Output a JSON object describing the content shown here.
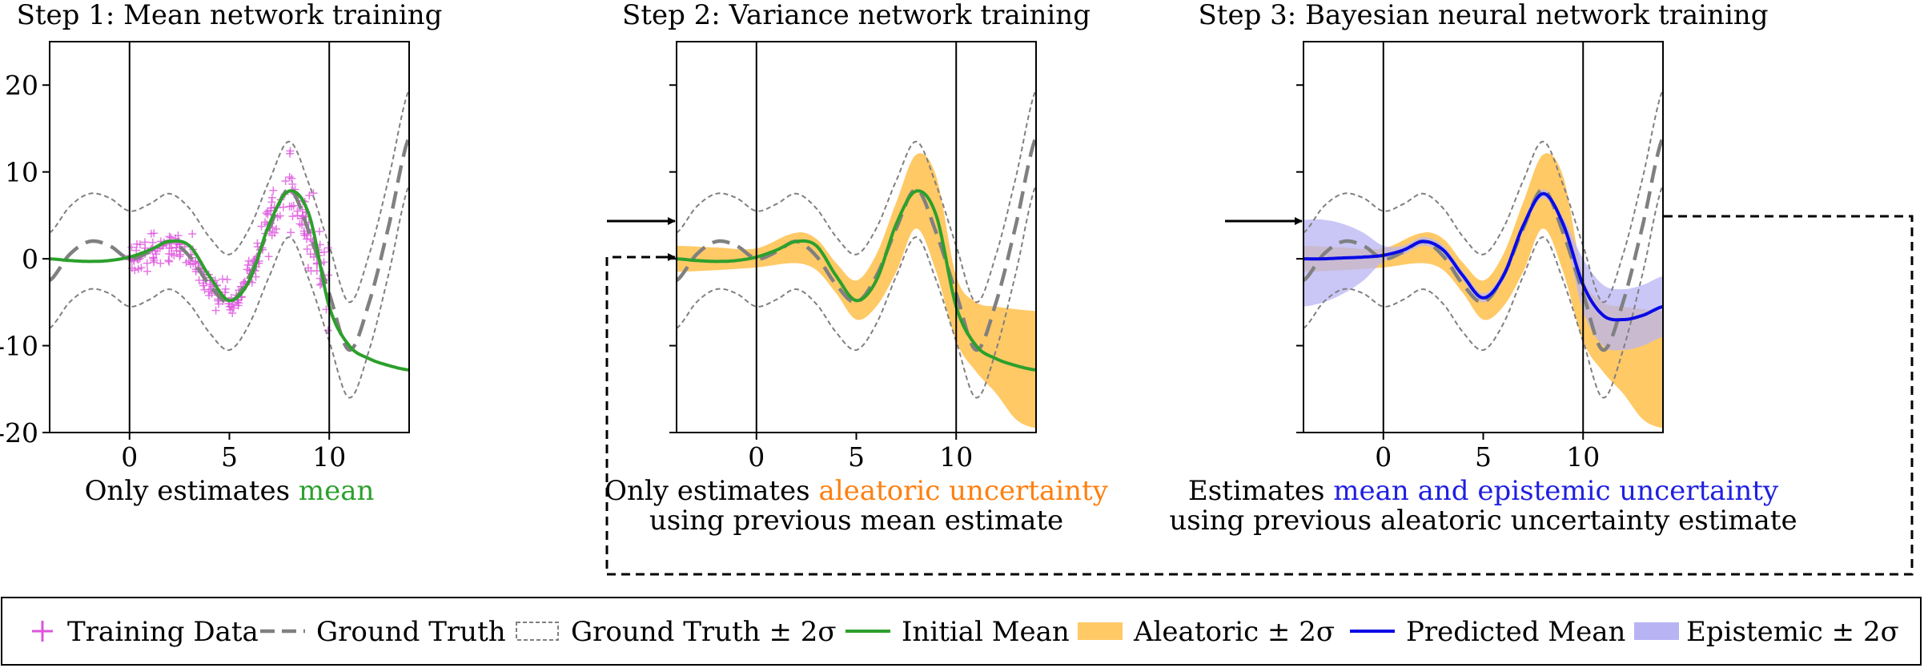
{
  "chart_data": {
    "type": "line",
    "x_range": [
      -4,
      14
    ],
    "y_range": [
      -20,
      25
    ],
    "x_ticks": [
      "0",
      "5",
      "10"
    ],
    "y_ticks": [
      "20",
      "10",
      "0",
      "-10",
      "-20"
    ],
    "vlines_x": [
      0,
      10
    ],
    "panels": [
      {
        "title": "Step 1: Mean network training",
        "caption_lines": [
          [
            {
              "text": "Only estimates ",
              "color": "#000000"
            },
            {
              "text": "mean",
              "color": "#2ca02c"
            }
          ]
        ],
        "show_y_ticks": true,
        "series": [
          "training_data",
          "ground_truth",
          "gt_band",
          "initial_mean"
        ]
      },
      {
        "title": "Step 2: Variance network training",
        "caption_lines": [
          [
            {
              "text": "Only estimates ",
              "color": "#000000"
            },
            {
              "text": "aleatoric uncertainty",
              "color": "#ff7f0e"
            }
          ],
          [
            {
              "text": "using previous mean estimate",
              "color": "#000000"
            }
          ]
        ],
        "show_y_ticks": false,
        "series": [
          "aleatoric_band",
          "ground_truth",
          "gt_band",
          "initial_mean"
        ]
      },
      {
        "title": "Step 3: Bayesian neural network training",
        "caption_lines": [
          [
            {
              "text": "Estimates ",
              "color": "#000000"
            },
            {
              "text": "mean and epistemic uncertainty",
              "color": "#1f1fe0"
            }
          ],
          [
            {
              "text": "using previous aleatoric uncertainty estimate",
              "color": "#000000"
            }
          ]
        ],
        "show_y_ticks": false,
        "series": [
          "aleatoric_band",
          "epistemic_band",
          "ground_truth",
          "gt_band",
          "predicted_mean"
        ]
      }
    ],
    "ground_truth": {
      "x": [
        -4,
        -3,
        -2,
        -1,
        0,
        1,
        2,
        3,
        4,
        5,
        6,
        7,
        8,
        9,
        10,
        11,
        12,
        13,
        14
      ],
      "y": [
        -2.5,
        0.5,
        2,
        1.5,
        0,
        0.8,
        2,
        0.3,
        -3,
        -5,
        -2,
        3.5,
        8,
        3,
        -4,
        -10.5,
        -5,
        4,
        14
      ],
      "band_halfwidth": 5.5
    },
    "initial_mean": {
      "x": [
        -4,
        -3,
        -2,
        -1,
        0,
        1,
        2,
        3,
        4,
        5,
        6,
        7,
        8,
        9,
        10,
        11,
        12,
        13,
        14
      ],
      "y": [
        0,
        -0.2,
        -0.3,
        -0.2,
        0.2,
        1,
        2,
        1.5,
        -2,
        -4.8,
        -2.5,
        4,
        7.8,
        5,
        -5.5,
        -10,
        -11.5,
        -12.3,
        -12.8
      ]
    },
    "aleatoric": {
      "x": [
        -4,
        -2,
        0,
        2,
        3,
        4,
        5,
        6,
        7,
        8,
        9,
        10,
        11,
        12,
        13,
        14
      ],
      "lower": [
        -1.5,
        -1.3,
        -1,
        -0.5,
        -1.3,
        -4,
        -7,
        -5.5,
        -1.5,
        3.5,
        -1.5,
        -9.5,
        -13,
        -15.5,
        -18.5,
        -19.5
      ],
      "upper": [
        1.5,
        1.3,
        1.2,
        3,
        2.3,
        -0.5,
        -2.5,
        0.5,
        6.5,
        12,
        9.5,
        -2,
        -5,
        -5.5,
        -5.8,
        -6
      ]
    },
    "predicted_mean": {
      "x": [
        -4,
        -3,
        -2,
        -1,
        0,
        1,
        2,
        3,
        4,
        5,
        6,
        7,
        8,
        9,
        10,
        11,
        12,
        13,
        14
      ],
      "y": [
        0,
        0,
        0.1,
        0.2,
        0.4,
        1,
        2,
        1,
        -2,
        -4.5,
        -2,
        3.8,
        7.5,
        4,
        -3,
        -6.5,
        -7,
        -6.5,
        -5.5
      ]
    },
    "epistemic": {
      "x": [
        -4,
        -3,
        -2,
        -1,
        0,
        1,
        2,
        3,
        4,
        5,
        6,
        7,
        8,
        9,
        10,
        11,
        12,
        13,
        14
      ],
      "lower": [
        -5.5,
        -5,
        -4,
        -2.5,
        -0.3,
        0.5,
        1.5,
        0.5,
        -2.5,
        -5,
        -2.5,
        3.3,
        7,
        3.3,
        -6,
        -10,
        -10.5,
        -10,
        -9
      ],
      "upper": [
        4.5,
        4.5,
        4,
        3,
        1.5,
        1.5,
        2.5,
        1.5,
        -1.5,
        -4,
        -1.5,
        4.3,
        8,
        4.7,
        0,
        -3,
        -3.5,
        -3,
        -2
      ]
    },
    "training_data_x_range": [
      0,
      10
    ],
    "training_data_noise_note": "points scattered around ground truth",
    "colors": {
      "training_data": "#dd55dd",
      "ground_truth": "#808080",
      "initial_mean": "#2ca02c",
      "aleatoric": "#ffc966",
      "predicted_mean": "#0a0ae6",
      "epistemic": "#b8b4f4"
    },
    "legend": [
      {
        "key": "training_data",
        "label": "Training Data"
      },
      {
        "key": "ground_truth",
        "label": "Ground Truth"
      },
      {
        "key": "gt_band",
        "label": "Ground Truth ± 2σ"
      },
      {
        "key": "initial_mean",
        "label": "Initial Mean"
      },
      {
        "key": "aleatoric",
        "label": "Aleatoric ± 2σ"
      },
      {
        "key": "predicted_mean",
        "label": "Predicted Mean"
      },
      {
        "key": "epistemic",
        "label": "Epistemic  ± 2σ"
      }
    ]
  }
}
